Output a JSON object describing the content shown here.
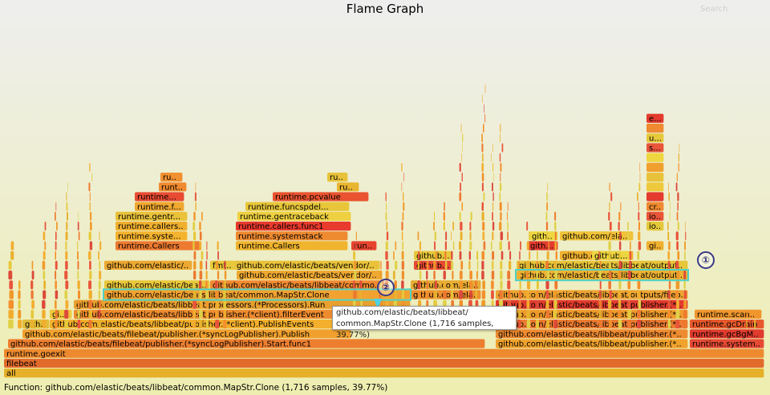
{
  "title": "Flame Graph",
  "search": {
    "label": "Search"
  },
  "details": "Function: github.com/elastic/beats/libbeat/common.MapStr.Clone (1,716 samples, 39.77%)",
  "tooltip": {
    "line1": "github.com/elastic/beats/libbeat/",
    "line2": "common.MapStr.Clone (1,716 samples, 39.77%)"
  },
  "markers": [
    "①",
    "②"
  ],
  "frames": [
    {
      "label": "all"
    },
    {
      "label": "filebeat"
    },
    {
      "label": "runtime.goexit"
    },
    {
      "label": "runtime.system..."
    },
    {
      "label": "github.com/elastic/beats/filebeat/publisher.(*syncLogPublisher).Start.func1"
    },
    {
      "label": "github.com/elastic/beats/libbeat/publisher.(*o..."
    },
    {
      "label": "runtime.gcBgMa..."
    },
    {
      "label": "github.com/elastic/beats/filebeat/publisher.(*syncLogPublisher).Publish"
    },
    {
      "label": "github.com/elastic/beats/libbeat/publisher.(*o..."
    },
    {
      "label": "runtime.gcDrain"
    },
    {
      "label": "gith..."
    },
    {
      "label": "github.com/elastic/beats/libbeat/publisher.(*client).PublishEvents"
    },
    {
      "label": "github.com/elastic/beats/libbeat/publisher.(*o..."
    },
    {
      "label": "runtime.scano..."
    },
    {
      "label": "gi..."
    },
    {
      "label": "github.com/elastic/beats/libbeat/publisher.(*client).filterEvent"
    },
    {
      "label": "github.com/elastic/beats/libbeat/publisher.(*o..."
    },
    {
      "label": "github.com/elastic/beats/libbeat/processors.(*Processors).Run"
    },
    {
      "label": "github.com/elastic/beats/libbeat/publisher.(*bu..."
    },
    {
      "label": "github.com/elastic/beats/libbeat/common.MapStr.Clone"
    },
    {
      "label": "github.com/elas..."
    },
    {
      "label": "github.com/elastic/beats/libbeat/outputs/fileou..."
    },
    {
      "label": "github.com/elastic/beat..."
    },
    {
      "label": "github.com/elastic/beats/libbeat/common..."
    },
    {
      "label": "github.com/elas..."
    },
    {
      "label": "github.com/elastic/beats/libbeat/outputs..."
    },
    {
      "label": "github.com/elastic/beats/vendor/github.c..."
    },
    {
      "label": "github.com/elastic/beats/libbeat/outputs..."
    },
    {
      "label": "github.com/elastic/beats/vendor/g..."
    },
    {
      "label": "github.com/elastic/..."
    },
    {
      "label": "fmt..."
    },
    {
      "label": "github..."
    },
    {
      "label": "github.com/elasti..."
    },
    {
      "label": "github.com/elas..."
    },
    {
      "label": "runtime.Callers"
    },
    {
      "label": "runtime.Callers"
    },
    {
      "label": "run..."
    },
    {
      "label": "gith..."
    },
    {
      "label": "runtime.systemstack"
    },
    {
      "label": "runtime.syste..."
    },
    {
      "label": "githu..."
    },
    {
      "label": "github.com/elastic..."
    },
    {
      "label": "runtime.callers.func1"
    },
    {
      "label": "runtime.callers..."
    },
    {
      "label": "runtime.gentraceback"
    },
    {
      "label": "runtime.gentr..."
    },
    {
      "label": "runtime.funcspdel..."
    },
    {
      "label": "runtime.f..."
    },
    {
      "label": "runtime.pcvalue"
    },
    {
      "label": "runtime..."
    },
    {
      "label": "runtim..."
    },
    {
      "label": "runti..."
    },
    {
      "label": "run..."
    },
    {
      "label": "runtim..."
    },
    {
      "label": "github..."
    },
    {
      "label": "github..."
    },
    {
      "label": "io..."
    },
    {
      "label": "io..."
    },
    {
      "label": "cr..."
    },
    {
      "label": "bu..."
    },
    {
      "label": "os..."
    },
    {
      "label": "os..."
    },
    {
      "label": "sy..."
    },
    {
      "label": "sy..."
    },
    {
      "label": "s..."
    },
    {
      "label": "u..."
    },
    {
      "label": "ex..."
    },
    {
      "label": "e..."
    }
  ],
  "colors": {
    "flame_dark": "#e8553a",
    "flame_mid": "#f09a2a",
    "flame_light": "#e6c83a",
    "highlight_border": "#4fd1c5",
    "tooltip_border": "#999999"
  }
}
